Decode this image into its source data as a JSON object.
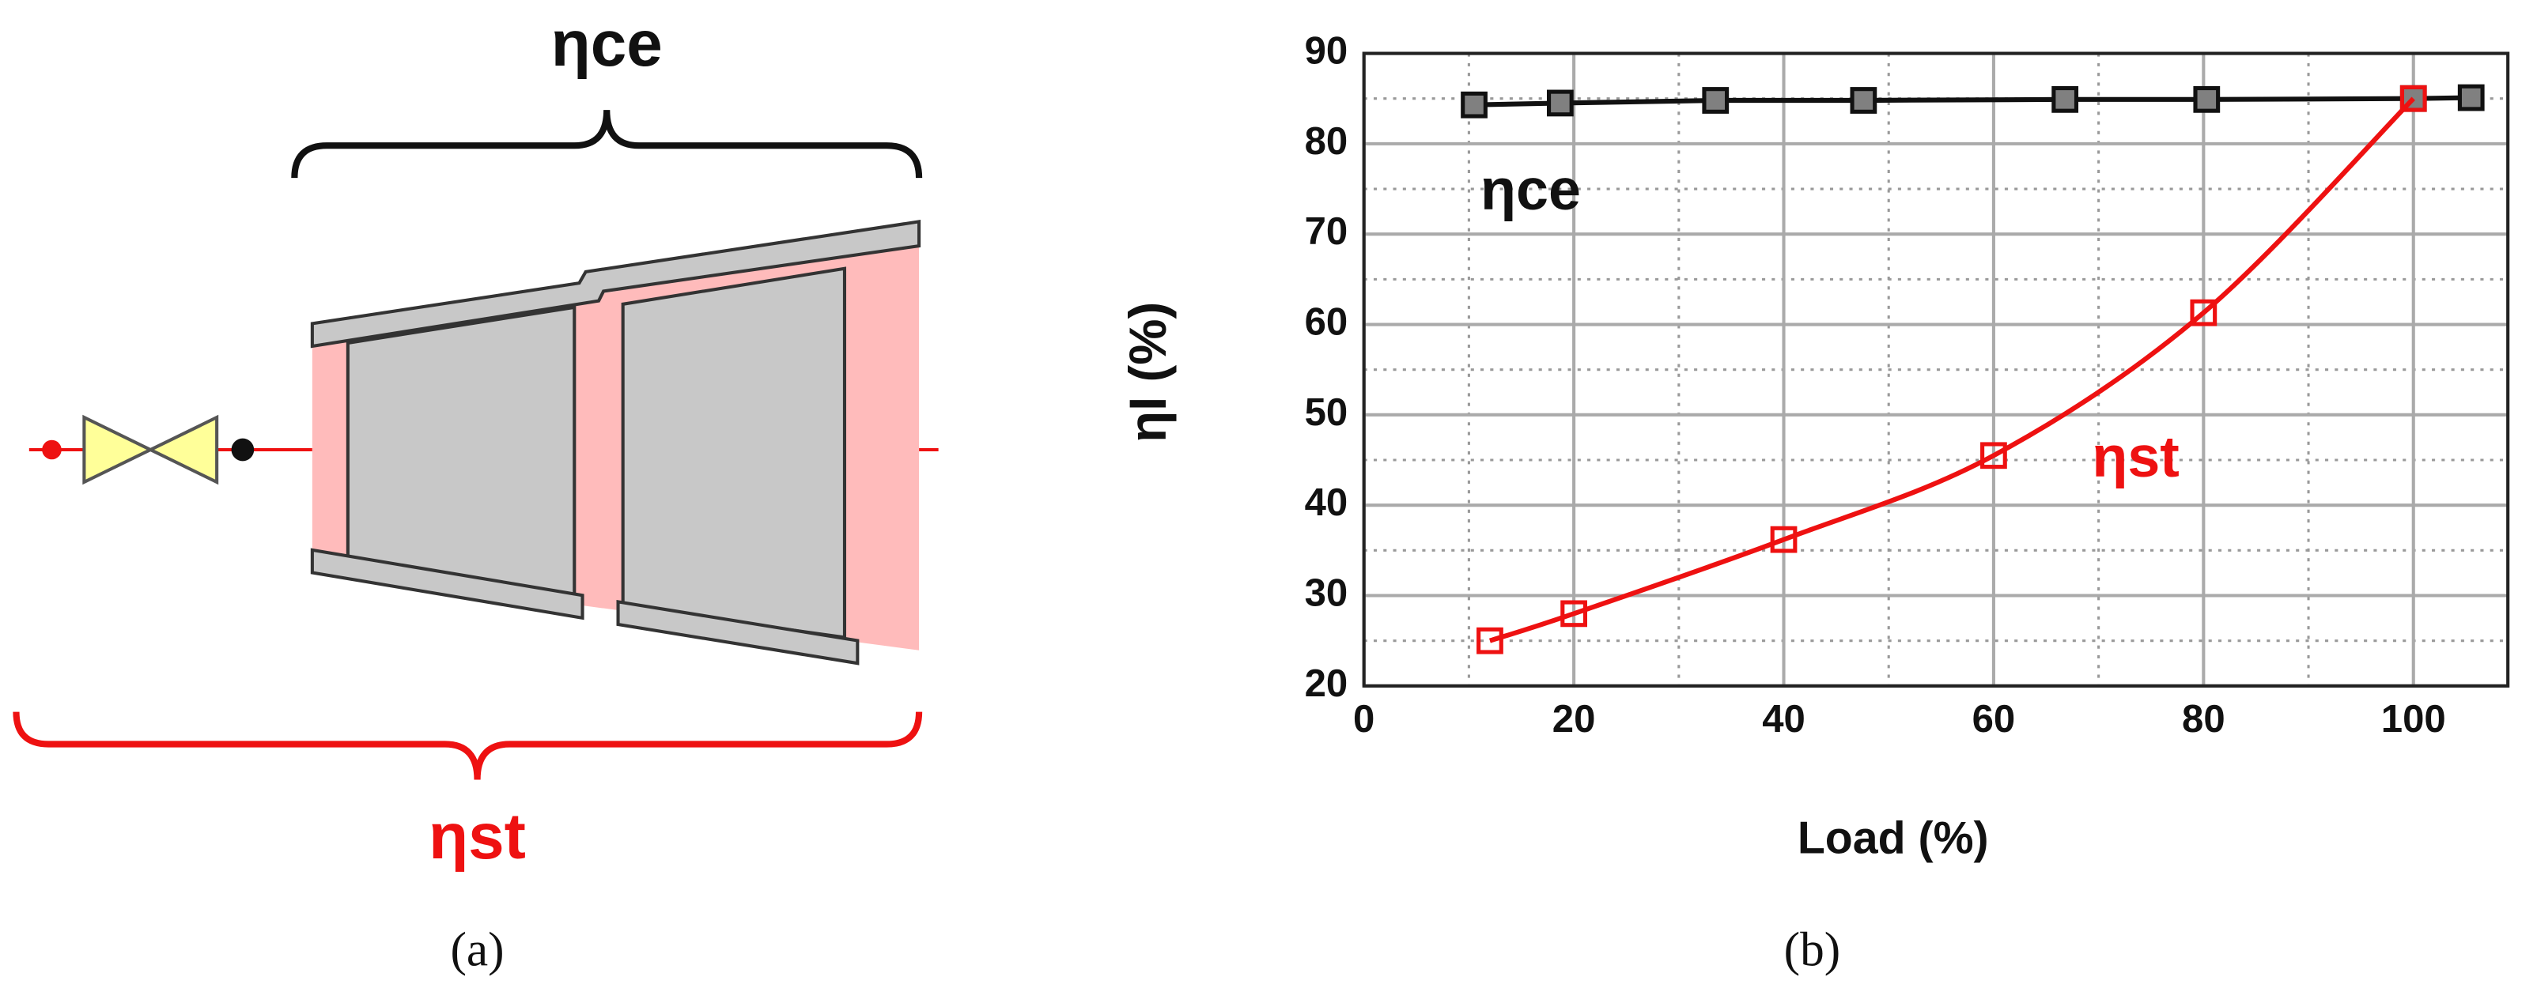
{
  "diagram": {
    "top_label": "ηce",
    "bottom_label": "ηst",
    "caption": "(a)"
  },
  "chart_data": {
    "type": "line",
    "caption": "(b)",
    "xlabel": "Load (%)",
    "ylabel": "ηI (%)",
    "xlim": [
      0,
      109
    ],
    "xticks": [
      0,
      20,
      40,
      60,
      80,
      100
    ],
    "ylim": [
      20,
      90
    ],
    "yticks": [
      20,
      30,
      40,
      50,
      60,
      70,
      80,
      90
    ],
    "grid": true,
    "minor_grid": true,
    "series": [
      {
        "name": "ηce",
        "color": "#111111",
        "marker_fill": "#808080",
        "smooth": false,
        "x": [
          10.5,
          18.7,
          33.5,
          47.6,
          66.8,
          80.3,
          100,
          105.5
        ],
        "values": [
          84.3,
          84.5,
          84.8,
          84.8,
          84.9,
          84.9,
          85.0,
          85.1
        ]
      },
      {
        "name": "ηst",
        "color": "#ee1111",
        "marker_fill": "none",
        "smooth": true,
        "x": [
          12,
          20,
          40,
          60,
          80,
          100
        ],
        "values": [
          25,
          28,
          36.2,
          45.5,
          61.3,
          85
        ]
      }
    ]
  }
}
